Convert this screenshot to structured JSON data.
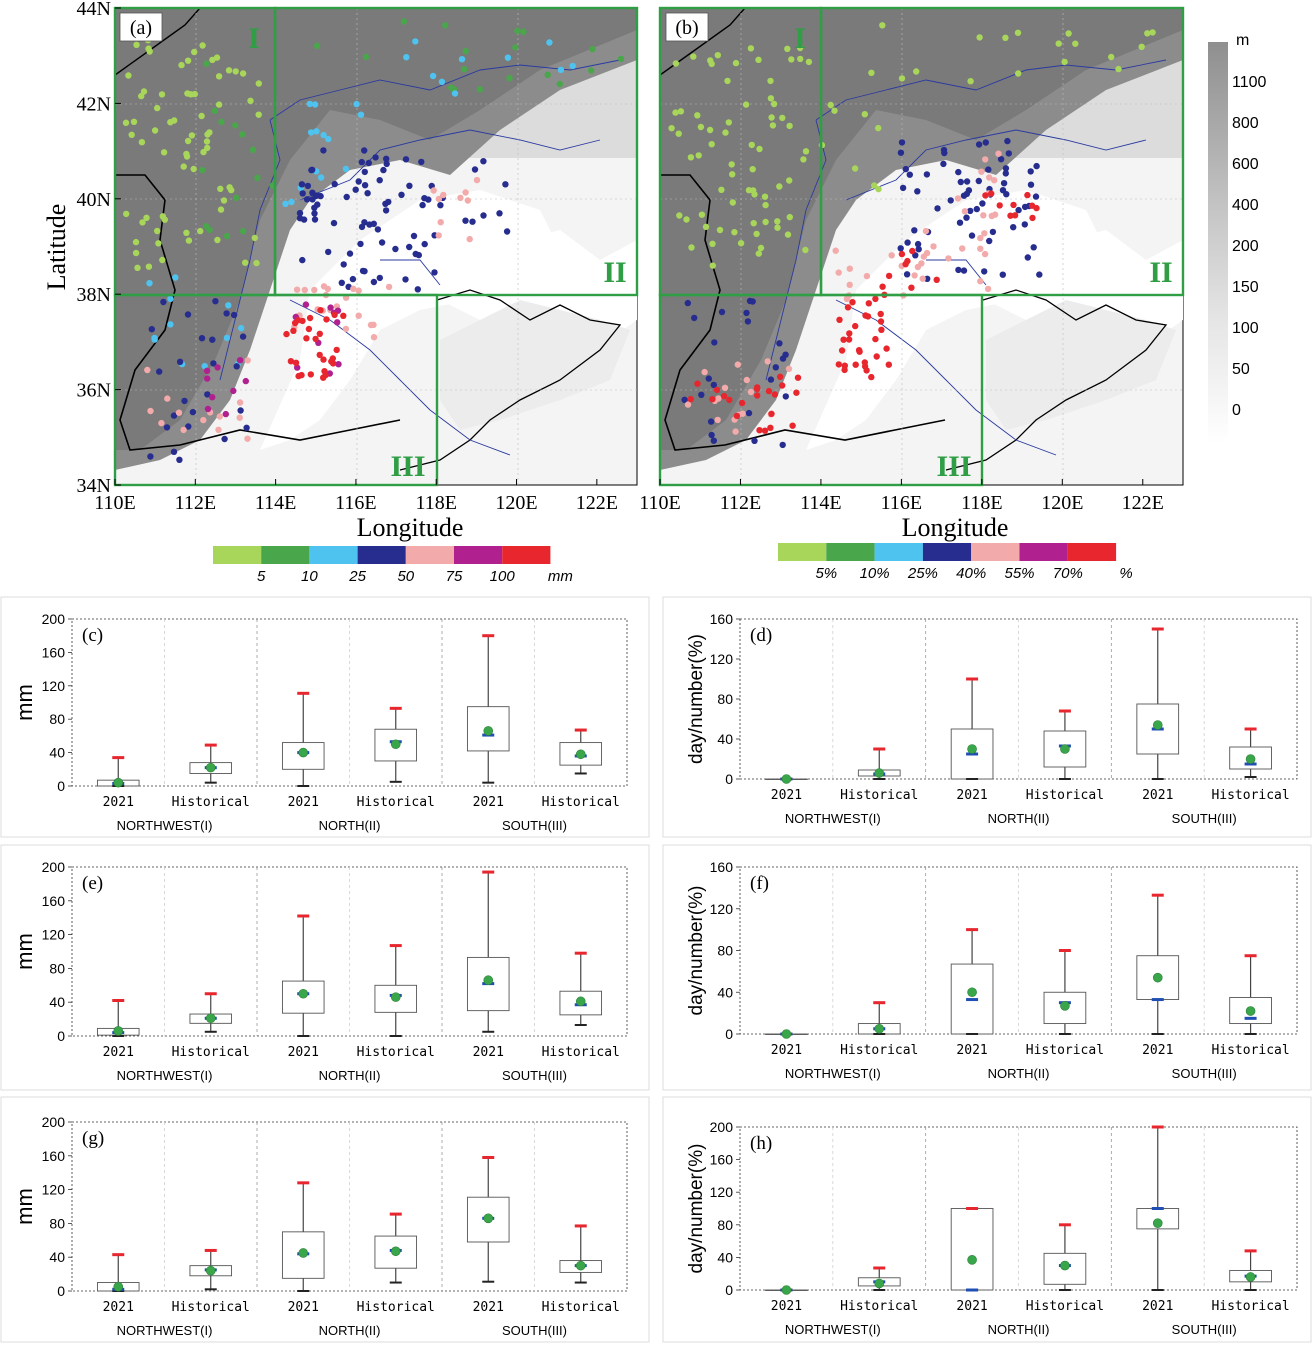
{
  "maps": [
    {
      "id": "a",
      "panel_label": "(a)",
      "region_labels": [
        "I",
        "II",
        "III"
      ],
      "x_ticks": [
        "110E",
        "112E",
        "114E",
        "116E",
        "118E",
        "120E",
        "122E"
      ],
      "y_ticks": [
        "34N",
        "36N",
        "38N",
        "40N",
        "42N",
        "44N"
      ],
      "show_y_ticks": true,
      "xlabel": "Longitude",
      "ylabel": "Latitude",
      "legend": {
        "colors": [
          "#a8d65a",
          "#4aa64a",
          "#4fc3f0",
          "#262d8f",
          "#f2aaaa",
          "#b0218f",
          "#e8262e"
        ],
        "labels": [
          "5",
          "10",
          "25",
          "50",
          "75",
          "100"
        ],
        "unit": "mm"
      }
    },
    {
      "id": "b",
      "panel_label": "(b)",
      "region_labels": [
        "I",
        "II",
        "III"
      ],
      "x_ticks": [
        "110E",
        "112E",
        "114E",
        "116E",
        "118E",
        "120E",
        "122E"
      ],
      "y_ticks": [],
      "show_y_ticks": false,
      "xlabel": "Longitude",
      "ylabel": "",
      "legend": {
        "colors": [
          "#a8d65a",
          "#4aa64a",
          "#4fc3f0",
          "#262d8f",
          "#f2aaaa",
          "#b0218f",
          "#e8262e"
        ],
        "labels": [
          "5%",
          "10%",
          "25%",
          "40%",
          "55%",
          "70%"
        ],
        "unit": "%"
      }
    }
  ],
  "elevation_bar": {
    "unit": "m",
    "labels": [
      "1100",
      "800",
      "600",
      "400",
      "200",
      "150",
      "100",
      "50",
      "0"
    ]
  },
  "chart_data": [
    {
      "id": "c",
      "type": "box",
      "panel_label": "(c)",
      "ylabel": "mm",
      "ylim": [
        0,
        200
      ],
      "yticks": [
        0,
        40,
        80,
        120,
        160,
        200
      ],
      "categories": [
        "2021",
        "Historical",
        "2021",
        "Historical",
        "2021",
        "Historical"
      ],
      "groups": [
        "NORTHWEST(I)",
        "NORTH(II)",
        "SOUTH(III)"
      ],
      "boxes": [
        {
          "min": 0,
          "q1": 0,
          "median": 3,
          "q3": 7,
          "max": 34,
          "mean": 4
        },
        {
          "min": 4,
          "q1": 15,
          "median": 22,
          "q3": 28,
          "max": 49,
          "mean": 22
        },
        {
          "min": 0,
          "q1": 20,
          "median": 40,
          "q3": 52,
          "max": 111,
          "mean": 40
        },
        {
          "min": 5,
          "q1": 30,
          "median": 53,
          "q3": 68,
          "max": 93,
          "mean": 50
        },
        {
          "min": 4,
          "q1": 42,
          "median": 61,
          "q3": 95,
          "max": 180,
          "mean": 66
        },
        {
          "min": 15,
          "q1": 25,
          "median": 36,
          "q3": 52,
          "max": 67,
          "mean": 38
        }
      ]
    },
    {
      "id": "d",
      "type": "box",
      "panel_label": "(d)",
      "ylabel": "day/number(%)",
      "ylim": [
        0,
        160
      ],
      "yticks": [
        0,
        40,
        80,
        120,
        160
      ],
      "categories": [
        "2021",
        "Historical",
        "2021",
        "Historical",
        "2021",
        "Historical"
      ],
      "groups": [
        "NORTHWEST(I)",
        "NORTH(II)",
        "SOUTH(III)"
      ],
      "boxes": [
        {
          "min": 0,
          "q1": 0,
          "median": 0,
          "q3": 0,
          "max": 0,
          "mean": 0
        },
        {
          "min": 0,
          "q1": 3,
          "median": 5,
          "q3": 9,
          "max": 30,
          "mean": 6
        },
        {
          "min": 0,
          "q1": 0,
          "median": 25,
          "q3": 50,
          "max": 100,
          "mean": 30
        },
        {
          "min": 0,
          "q1": 12,
          "median": 33,
          "q3": 48,
          "max": 68,
          "mean": 30
        },
        {
          "min": 0,
          "q1": 25,
          "median": 50,
          "q3": 75,
          "max": 150,
          "mean": 54
        },
        {
          "min": 2,
          "q1": 10,
          "median": 15,
          "q3": 32,
          "max": 50,
          "mean": 20
        }
      ]
    },
    {
      "id": "e",
      "type": "box",
      "panel_label": "(e)",
      "ylabel": "mm",
      "ylim": [
        0,
        200
      ],
      "yticks": [
        0,
        40,
        80,
        120,
        160,
        200
      ],
      "categories": [
        "2021",
        "Historical",
        "2021",
        "Historical",
        "2021",
        "Historical"
      ],
      "groups": [
        "NORTHWEST(I)",
        "NORTH(II)",
        "SOUTH(III)"
      ],
      "boxes": [
        {
          "min": 0,
          "q1": 1,
          "median": 4,
          "q3": 9,
          "max": 42,
          "mean": 6
        },
        {
          "min": 5,
          "q1": 15,
          "median": 21,
          "q3": 26,
          "max": 50,
          "mean": 21
        },
        {
          "min": 0,
          "q1": 27,
          "median": 50,
          "q3": 65,
          "max": 142,
          "mean": 50
        },
        {
          "min": 0,
          "q1": 28,
          "median": 48,
          "q3": 60,
          "max": 107,
          "mean": 46
        },
        {
          "min": 5,
          "q1": 30,
          "median": 62,
          "q3": 93,
          "max": 194,
          "mean": 66
        },
        {
          "min": 13,
          "q1": 25,
          "median": 37,
          "q3": 53,
          "max": 98,
          "mean": 41
        }
      ]
    },
    {
      "id": "f",
      "type": "box",
      "panel_label": "(f)",
      "ylabel": "day/number(%)",
      "ylim": [
        0,
        160
      ],
      "yticks": [
        0,
        40,
        80,
        120,
        160
      ],
      "categories": [
        "2021",
        "Historical",
        "2021",
        "Historical",
        "2021",
        "Historical"
      ],
      "groups": [
        "NORTHWEST(I)",
        "NORTH(II)",
        "SOUTH(III)"
      ],
      "boxes": [
        {
          "min": 0,
          "q1": 0,
          "median": 0,
          "q3": 0,
          "max": 0,
          "mean": 0
        },
        {
          "min": 0,
          "q1": 0,
          "median": 5,
          "q3": 10,
          "max": 30,
          "mean": 5
        },
        {
          "min": 0,
          "q1": 0,
          "median": 33,
          "q3": 67,
          "max": 100,
          "mean": 40
        },
        {
          "min": 0,
          "q1": 10,
          "median": 30,
          "q3": 40,
          "max": 80,
          "mean": 27
        },
        {
          "min": 0,
          "q1": 33,
          "median": 33,
          "q3": 75,
          "max": 133,
          "mean": 54
        },
        {
          "min": 0,
          "q1": 10,
          "median": 15,
          "q3": 35,
          "max": 75,
          "mean": 22
        }
      ]
    },
    {
      "id": "g",
      "type": "box",
      "panel_label": "(g)",
      "ylabel": "mm",
      "ylim": [
        0,
        200
      ],
      "yticks": [
        0,
        40,
        80,
        120,
        160,
        200
      ],
      "categories": [
        "2021",
        "Historical",
        "2021",
        "Historical",
        "2021",
        "Historical"
      ],
      "groups": [
        "NORTHWEST(I)",
        "NORTH(II)",
        "SOUTH(III)"
      ],
      "boxes": [
        {
          "min": 0,
          "q1": 0,
          "median": 2,
          "q3": 10,
          "max": 43,
          "mean": 5
        },
        {
          "min": 2,
          "q1": 18,
          "median": 25,
          "q3": 30,
          "max": 48,
          "mean": 24
        },
        {
          "min": 0,
          "q1": 15,
          "median": 44,
          "q3": 70,
          "max": 128,
          "mean": 45
        },
        {
          "min": 10,
          "q1": 27,
          "median": 48,
          "q3": 65,
          "max": 91,
          "mean": 47
        },
        {
          "min": 11,
          "q1": 58,
          "median": 86,
          "q3": 111,
          "max": 158,
          "mean": 86
        },
        {
          "min": 10,
          "q1": 22,
          "median": 30,
          "q3": 36,
          "max": 77,
          "mean": 30
        }
      ]
    },
    {
      "id": "h",
      "type": "box",
      "panel_label": "(h)",
      "ylabel": "day/number(%)",
      "ylim": [
        0,
        200
      ],
      "yticks": [
        0,
        40,
        80,
        120,
        160,
        200
      ],
      "categories": [
        "2021",
        "Historical",
        "2021",
        "Historical",
        "2021",
        "Historical"
      ],
      "groups": [
        "NORTHWEST(I)",
        "NORTH(II)",
        "SOUTH(III)"
      ],
      "boxes": [
        {
          "min": 0,
          "q1": 0,
          "median": 0,
          "q3": 0,
          "max": 0,
          "mean": 0
        },
        {
          "min": 0,
          "q1": 5,
          "median": 10,
          "q3": 15,
          "max": 27,
          "mean": 8
        },
        {
          "min": 0,
          "q1": 0,
          "median": 0,
          "q3": 100,
          "max": 100,
          "mean": 37
        },
        {
          "min": 0,
          "q1": 7,
          "median": 30,
          "q3": 45,
          "max": 80,
          "mean": 30
        },
        {
          "min": 0,
          "q1": 75,
          "median": 100,
          "q3": 100,
          "max": 200,
          "mean": 82
        },
        {
          "min": 0,
          "q1": 10,
          "median": 17,
          "q3": 24,
          "max": 48,
          "mean": 16
        }
      ]
    }
  ]
}
